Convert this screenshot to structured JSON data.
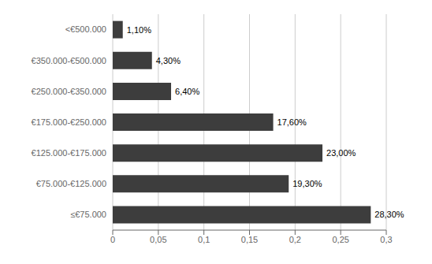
{
  "chart_data": {
    "type": "bar",
    "orientation": "horizontal",
    "categories": [
      "≤€75.000",
      "€75.000-€125.000",
      "€125.000-€175.000",
      "€175.000-€250.000",
      "€250.000-€350.000",
      "€350.000-€500.000",
      "<€500.000"
    ],
    "values": [
      0.283,
      0.193,
      0.23,
      0.176,
      0.064,
      0.043,
      0.011
    ],
    "value_labels": [
      "28,30%",
      "19,30%",
      "23,00%",
      "17,60%",
      "6,40%",
      "4,30%",
      "1,10%"
    ],
    "data_labels": true,
    "color": "#3d3d3d",
    "xlim": [
      0,
      0.3
    ],
    "xticks": [
      0,
      {
        "value": 0.05,
        "label": "0,05"
      },
      {
        "value": 0.1,
        "label": "0,1"
      },
      {
        "value": 0.15,
        "label": "0,15"
      },
      {
        "value": 0.2,
        "label": "0,2"
      },
      {
        "value": 0.25,
        "label": "0,25"
      },
      {
        "value": 0.3,
        "label": "0,3"
      }
    ],
    "grid": true
  }
}
